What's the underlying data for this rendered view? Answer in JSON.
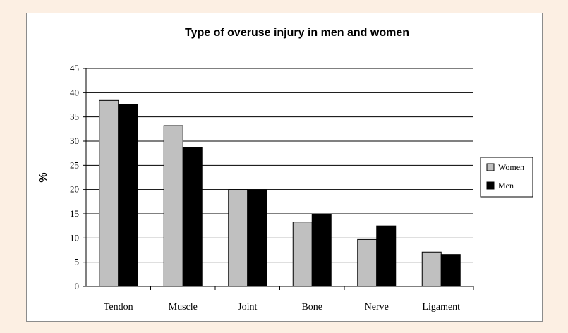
{
  "chart_data": {
    "type": "bar",
    "title": "Type of overuse injury in men and women",
    "xlabel": "",
    "ylabel": "%",
    "categories": [
      "Tendon",
      "Muscle",
      "Joint",
      "Bone",
      "Nerve",
      "Ligament"
    ],
    "series": [
      {
        "name": "Women",
        "values": [
          38.4,
          33.2,
          20,
          13.3,
          9.7,
          7.1
        ],
        "color": "#c0c0c0"
      },
      {
        "name": "Men",
        "values": [
          37.6,
          28.7,
          20,
          14.8,
          12.5,
          6.6
        ],
        "color": "#000000"
      }
    ],
    "ylim": [
      0,
      45
    ],
    "yticks": [
      0,
      5,
      10,
      15,
      20,
      25,
      30,
      35,
      40,
      45
    ],
    "grid": true,
    "legend_position": "right"
  }
}
